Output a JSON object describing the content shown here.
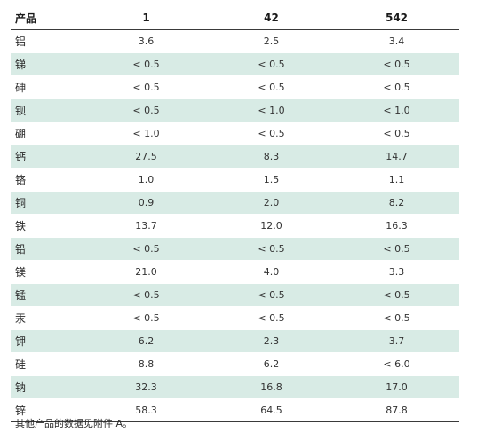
{
  "table": {
    "headers": [
      "产品",
      "1",
      "42",
      "542"
    ],
    "rows": [
      {
        "name": "铝",
        "values": [
          "3.6",
          "2.5",
          "3.4"
        ]
      },
      {
        "name": "锑",
        "values": [
          "< 0.5",
          "< 0.5",
          "< 0.5"
        ]
      },
      {
        "name": "砷",
        "values": [
          "< 0.5",
          "< 0.5",
          "< 0.5"
        ]
      },
      {
        "name": "钡",
        "values": [
          "< 0.5",
          "< 1.0",
          "< 1.0"
        ]
      },
      {
        "name": "硼",
        "values": [
          "< 1.0",
          "< 0.5",
          "< 0.5"
        ]
      },
      {
        "name": "钙",
        "values": [
          "27.5",
          "8.3",
          "14.7"
        ]
      },
      {
        "name": "铬",
        "values": [
          "1.0",
          "1.5",
          "1.1"
        ]
      },
      {
        "name": "铜",
        "values": [
          "0.9",
          "2.0",
          "8.2"
        ]
      },
      {
        "name": "铁",
        "values": [
          "13.7",
          "12.0",
          "16.3"
        ]
      },
      {
        "name": "铅",
        "values": [
          "< 0.5",
          "< 0.5",
          "< 0.5"
        ]
      },
      {
        "name": "镁",
        "values": [
          "21.0",
          "4.0",
          "3.3"
        ]
      },
      {
        "name": "锰",
        "values": [
          "< 0.5",
          "< 0.5",
          "< 0.5"
        ]
      },
      {
        "name": "汞",
        "values": [
          "< 0.5",
          "< 0.5",
          "< 0.5"
        ]
      },
      {
        "name": "钾",
        "values": [
          "6.2",
          "2.3",
          "3.7"
        ]
      },
      {
        "name": "硅",
        "values": [
          "8.8",
          "6.2",
          "< 6.0"
        ]
      },
      {
        "name": "钠",
        "values": [
          "32.3",
          "16.8",
          "17.0"
        ]
      },
      {
        "name": "锌",
        "values": [
          "58.3",
          "64.5",
          "87.8"
        ]
      }
    ]
  },
  "footnote": "其他产品的数据见附件 A。",
  "colors": {
    "stripe": "#d8ebe5",
    "rule": "#3a3a3a",
    "text": "#333333"
  }
}
